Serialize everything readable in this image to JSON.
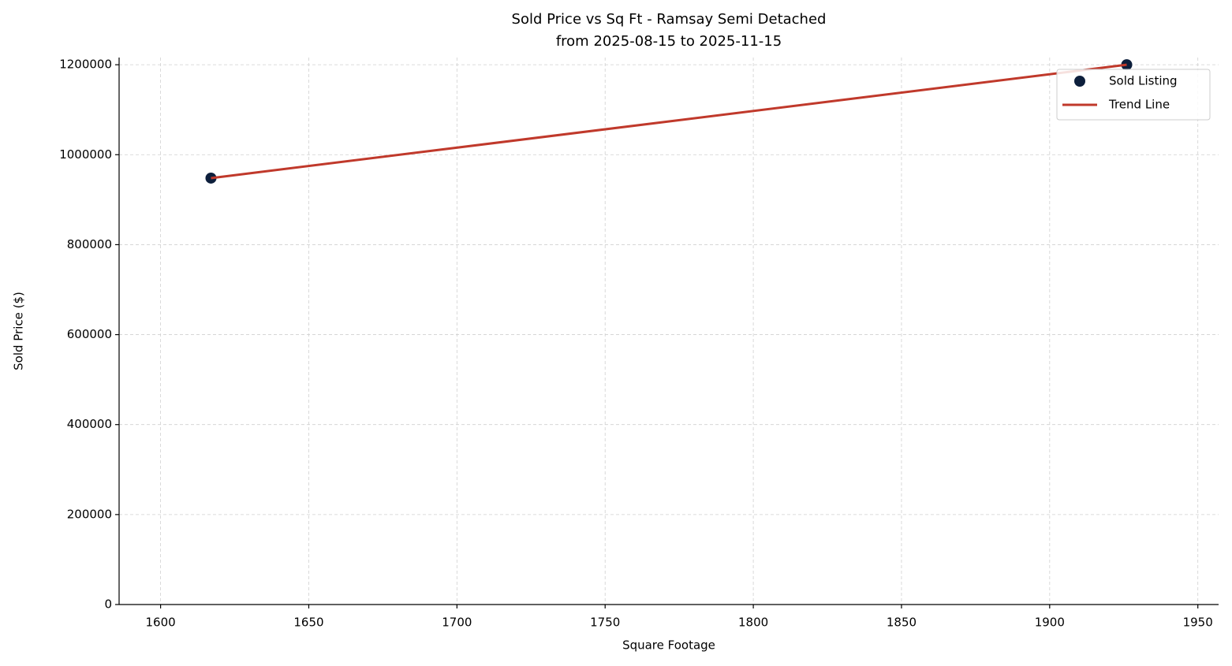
{
  "chart_data": {
    "type": "scatter",
    "title": "Sold Price vs Sq Ft - Ramsay Semi Detached",
    "subtitle": "from 2025-08-15 to 2025-11-15",
    "x_label": "Square Footage",
    "y_label": "Sold Price ($)",
    "series": [
      {
        "name": "Sold Listing",
        "type": "scatter",
        "color": "#0d1f3c",
        "x": [
          1617,
          1926
        ],
        "values": [
          948000,
          1200000
        ]
      },
      {
        "name": "Trend Line",
        "type": "line",
        "color": "#c0392b",
        "x": [
          1617,
          1926
        ],
        "values": [
          948000,
          1200000
        ]
      }
    ],
    "xlim": [
      1586,
      1957
    ],
    "xticks": [
      1600,
      1650,
      1700,
      1750,
      1800,
      1850,
      1900,
      1950
    ],
    "ylim": [
      0,
      1216000
    ],
    "yticks": [
      0,
      200000,
      400000,
      600000,
      800000,
      1000000,
      1200000
    ],
    "grid": true,
    "legend": "upper right"
  }
}
